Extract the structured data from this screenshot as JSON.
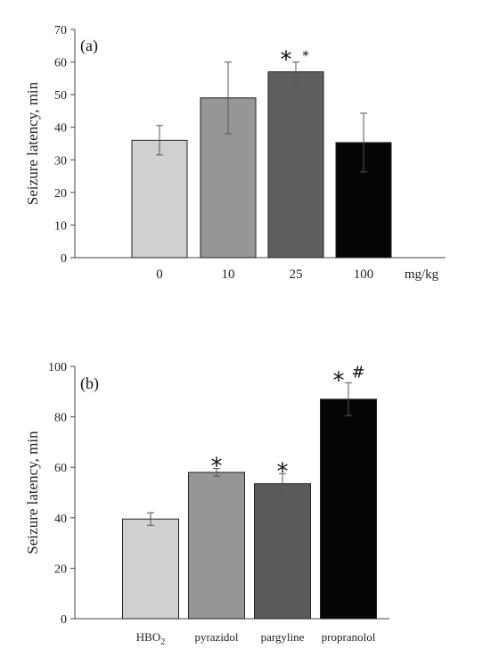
{
  "chart_data": [
    {
      "type": "bar",
      "panel_label": "(a)",
      "categories": [
        "0",
        "10",
        "25",
        "100"
      ],
      "values": [
        36,
        49,
        57,
        35.3
      ],
      "errors": [
        4.5,
        11,
        3,
        9
      ],
      "colors": [
        "#d0d0d0",
        "#969696",
        "#5f5f5f",
        "#050505"
      ],
      "annotations": [
        {
          "category_index": 2,
          "text": "*",
          "size": "large"
        },
        {
          "category_index": 2,
          "text": "*",
          "size": "small"
        }
      ],
      "xlabel": "mg/kg",
      "ylabel": "Seizure latency, min",
      "ylim": [
        0,
        70
      ],
      "yticks": [
        "0",
        "10",
        "20",
        "30",
        "40",
        "50",
        "60",
        "70"
      ],
      "grid": false
    },
    {
      "type": "bar",
      "panel_label": "(b)",
      "categories": [
        "HBO",
        "pyrazidol",
        "pargyline",
        "propranolol"
      ],
      "category_subscripts": [
        "2",
        "",
        "",
        ""
      ],
      "values": [
        39.5,
        58,
        53.5,
        87
      ],
      "errors": [
        2.5,
        1.5,
        4,
        6.5
      ],
      "colors": [
        "#d0d0d0",
        "#969696",
        "#5a5a5a",
        "#050505"
      ],
      "annotations": [
        {
          "category_index": 1,
          "text": "*",
          "size": "large"
        },
        {
          "category_index": 2,
          "text": "*",
          "size": "large"
        },
        {
          "category_index": 3,
          "text": "*",
          "size": "large"
        },
        {
          "category_index": 3,
          "text": "#",
          "size": "medium"
        }
      ],
      "xlabel": "",
      "ylabel": "Seizure latency, min",
      "ylim": [
        0,
        100
      ],
      "yticks": [
        "0",
        "20",
        "40",
        "60",
        "80",
        "100"
      ],
      "grid": false
    }
  ]
}
